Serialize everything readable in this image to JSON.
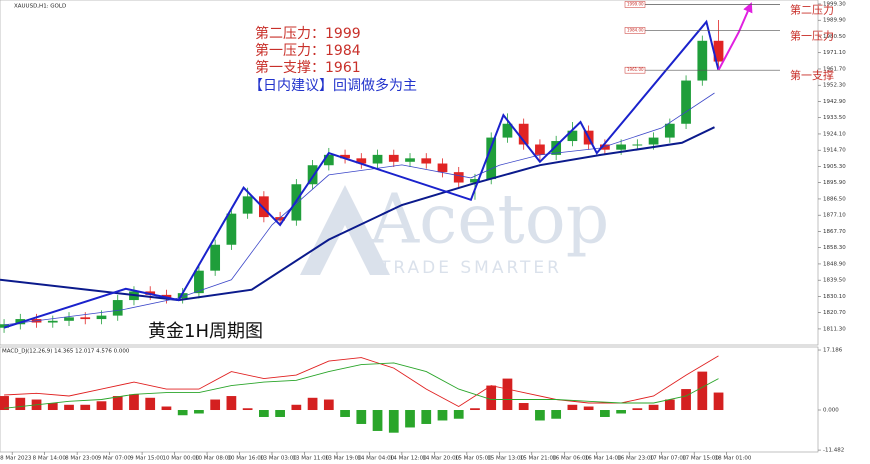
{
  "chart_data": [
    {
      "type": "candlestick",
      "title": "XAUUSD,H1: GOLD",
      "up_color": "#1f9e3a",
      "down_color": "#e02424",
      "x": [
        -2,
        2,
        6,
        10,
        14,
        18,
        22,
        26,
        30,
        34,
        38,
        42,
        46,
        50,
        54,
        58,
        62,
        66,
        70,
        74,
        78,
        82,
        86,
        90,
        94,
        98,
        102,
        106,
        110,
        114,
        118,
        122,
        126,
        130,
        134,
        138,
        142,
        146,
        150,
        154,
        158,
        162,
        166,
        170,
        174
      ],
      "open": [
        1812,
        1814,
        1817,
        1815,
        1816,
        1818,
        1817,
        1819,
        1828,
        1833,
        1831,
        1829,
        1832,
        1845,
        1860,
        1878,
        1888,
        1876,
        1874,
        1895,
        1906,
        1912,
        1910,
        1907,
        1912,
        1908,
        1910,
        1907,
        1902,
        1896,
        1898,
        1922,
        1930,
        1918,
        1912,
        1920,
        1926,
        1918,
        1915,
        1918,
        1918,
        1922,
        1930,
        1955,
        1978
      ],
      "high": [
        1817,
        1820,
        1820,
        1819,
        1821,
        1821,
        1822,
        1831,
        1836,
        1836,
        1834,
        1835,
        1848,
        1863,
        1881,
        1893,
        1891,
        1879,
        1898,
        1909,
        1916,
        1915,
        1913,
        1915,
        1915,
        1913,
        1913,
        1910,
        1905,
        1901,
        1925,
        1936,
        1933,
        1921,
        1923,
        1931,
        1929,
        1921,
        1921,
        1921,
        1925,
        1933,
        1958,
        1981,
        1990
      ],
      "low": [
        1809,
        1811,
        1812,
        1812,
        1813,
        1814,
        1814,
        1816,
        1825,
        1828,
        1826,
        1826,
        1829,
        1842,
        1857,
        1875,
        1873,
        1871,
        1871,
        1892,
        1903,
        1907,
        1904,
        1904,
        1905,
        1905,
        1904,
        1899,
        1893,
        1886,
        1895,
        1919,
        1915,
        1909,
        1909,
        1917,
        1915,
        1912,
        1912,
        1915,
        1915,
        1919,
        1927,
        1952,
        1963
      ],
      "close": [
        1814,
        1817,
        1815,
        1816,
        1818,
        1817,
        1819,
        1828,
        1833,
        1831,
        1829,
        1832,
        1845,
        1860,
        1878,
        1888,
        1876,
        1874,
        1895,
        1906,
        1912,
        1910,
        1907,
        1912,
        1908,
        1910,
        1907,
        1902,
        1896,
        1898,
        1922,
        1930,
        1918,
        1912,
        1920,
        1926,
        1918,
        1915,
        1918,
        1918,
        1922,
        1930,
        1955,
        1978,
        1966
      ],
      "lines": [
        {
          "color": "#0b1a8c",
          "width": 2,
          "x": [
            -3,
            41,
            59,
            78,
            96,
            113,
            130,
            145,
            165,
            173
          ],
          "values": [
            1839.7,
            1828,
            1834,
            1863,
            1883,
            1895,
            1906,
            1912,
            1919,
            1928
          ]
        },
        {
          "color": "#3b46c8",
          "width": 0.8,
          "x": [
            -2,
            27,
            41,
            54,
            64,
            78,
            96,
            113,
            120,
            130,
            145,
            160,
            173
          ],
          "values": [
            1813.6,
            1822.3,
            1829.2,
            1839.7,
            1871.5,
            1900.4,
            1906.2,
            1898.7,
            1906,
            1912,
            1916,
            1927.6,
            1947.8
          ]
        },
        {
          "color": "#1a22cc",
          "width": 2,
          "x": [
            -2,
            28,
            41,
            57,
            66,
            78,
            113,
            121,
            130,
            140,
            144,
            171,
            174
          ],
          "values": [
            1812,
            1834.5,
            1828,
            1893,
            1871.5,
            1913,
            1886,
            1935,
            1908,
            1931,
            1913,
            1989,
            1961
          ]
        },
        {
          "color": "#e020e0",
          "width": 2,
          "arrow": true,
          "x": [
            174,
            179,
            182
          ],
          "values": [
            1961,
            1983,
            1999.3
          ]
        }
      ],
      "levels": [
        {
          "value": 1999,
          "label": "1999.00",
          "name": "第二压力"
        },
        {
          "value": 1984,
          "label": "1984.00",
          "name": "第一压力"
        },
        {
          "value": 1961,
          "label": "1961.00",
          "name": "第一支撑"
        }
      ],
      "annotations": [
        "第二压力：1999",
        "第一压力：1984",
        "第一支撑：1961",
        "【日内建议】回调做多为主",
        "黄金1H周期图"
      ],
      "xlim": [
        -3,
        198.5
      ],
      "ylim": [
        1802,
        2001.6
      ],
      "yticks": [
        {
          "value": 1999.3,
          "label": "1999.30"
        },
        {
          "value": 1989.9,
          "label": "1989.90"
        },
        {
          "value": 1980.5,
          "label": "1980.50"
        },
        {
          "value": 1971.1,
          "label": "1971.10"
        },
        {
          "value": 1961.7,
          "label": "1961.70"
        },
        {
          "value": 1952.3,
          "label": "1952.30"
        },
        {
          "value": 1942.9,
          "label": "1942.90"
        },
        {
          "value": 1933.5,
          "label": "1933.50"
        },
        {
          "value": 1924.1,
          "label": "1924.10"
        },
        {
          "value": 1914.7,
          "label": "1914.70"
        },
        {
          "value": 1905.3,
          "label": "1905.30"
        },
        {
          "value": 1895.9,
          "label": "1895.90"
        },
        {
          "value": 1886.5,
          "label": "1886.50"
        },
        {
          "value": 1877.1,
          "label": "1877.10"
        },
        {
          "value": 1867.7,
          "label": "1867.70"
        },
        {
          "value": 1858.3,
          "label": "1858.30"
        },
        {
          "value": 1848.9,
          "label": "1848.90"
        },
        {
          "value": 1839.5,
          "label": "1839.50"
        },
        {
          "value": 1830.1,
          "label": "1830.10"
        },
        {
          "value": 1820.7,
          "label": "1820.70"
        },
        {
          "value": 1811.3,
          "label": "1811.30"
        }
      ]
    },
    {
      "type": "macd",
      "title": "MACD_DJ(12,26,9) 14.365 12.017 4.576 0.000",
      "up_color": "#d42020",
      "down_color": "#2aa52a",
      "x": [
        -2,
        2,
        6,
        10,
        14,
        18,
        22,
        26,
        30,
        34,
        38,
        42,
        46,
        50,
        54,
        58,
        62,
        66,
        70,
        74,
        78,
        82,
        86,
        90,
        94,
        98,
        102,
        106,
        110,
        114,
        118,
        122,
        126,
        130,
        134,
        138,
        142,
        146,
        150,
        154,
        158,
        162,
        166,
        170,
        174
      ],
      "values": [
        4,
        3.5,
        3,
        2,
        1.5,
        1.5,
        2.5,
        4,
        4.5,
        3.5,
        1,
        -1.5,
        -1,
        3,
        4,
        0.5,
        -2,
        -2,
        1.5,
        3.5,
        3,
        -2,
        -4,
        -6,
        -6.5,
        -5,
        -4,
        -3,
        -2.5,
        0.5,
        7,
        9,
        2,
        -3,
        -2.5,
        1.5,
        1,
        -2,
        -1,
        0.5,
        1.5,
        3,
        6,
        11,
        5
      ],
      "lines": [
        {
          "color": "#e02020",
          "x": [
            -2,
            6,
            14,
            22,
            30,
            38,
            46,
            54,
            62,
            70,
            78,
            86,
            94,
            102,
            110,
            118,
            126,
            134,
            142,
            150,
            158,
            166,
            174
          ],
          "values": [
            4.3,
            4.8,
            4,
            6,
            8,
            6,
            6,
            11,
            9,
            10,
            14,
            15,
            12,
            6,
            1,
            7,
            5,
            3,
            2,
            2,
            4,
            10,
            15.5
          ]
        },
        {
          "color": "#2aa52a",
          "x": [
            -2,
            6,
            14,
            22,
            30,
            38,
            46,
            54,
            62,
            70,
            78,
            86,
            94,
            102,
            110,
            118,
            126,
            134,
            142,
            150,
            158,
            166,
            174
          ],
          "values": [
            0.5,
            1.5,
            2.5,
            3,
            4.5,
            5,
            5,
            7,
            8,
            8.5,
            11,
            13,
            13.5,
            11,
            6,
            3,
            3,
            3,
            2.5,
            2,
            2,
            4,
            9
          ]
        }
      ],
      "xlim": [
        -3,
        198.5
      ],
      "ylim": [
        -12.03,
        18.05
      ],
      "yticks": [
        {
          "value": 17.186,
          "label": "17.186"
        },
        {
          "value": 0,
          "label": "0.000"
        },
        {
          "value": -11.482,
          "label": "-11.482"
        }
      ],
      "xticks": [
        {
          "value": 0,
          "label": "8 Mar 2023"
        },
        {
          "value": 8,
          "label": "8 Mar 14:00"
        },
        {
          "value": 16,
          "label": "8 Mar 23:00"
        },
        {
          "value": 24,
          "label": "9 Mar 07:00"
        },
        {
          "value": 32,
          "label": "9 Mar 15:00"
        },
        {
          "value": 40,
          "label": "10 Mar 00:00"
        },
        {
          "value": 48,
          "label": "10 Mar 08:00"
        },
        {
          "value": 56,
          "label": "10 Mar 16:00"
        },
        {
          "value": 64,
          "label": "13 Mar 03:00"
        },
        {
          "value": 72,
          "label": "13 Mar 11:00"
        },
        {
          "value": 80,
          "label": "13 Mar 19:00"
        },
        {
          "value": 88,
          "label": "14 Mar 04:00"
        },
        {
          "value": 96,
          "label": "14 Mar 12:00"
        },
        {
          "value": 104,
          "label": "14 Mar 20:00"
        },
        {
          "value": 112,
          "label": "15 Mar 05:00"
        },
        {
          "value": 120,
          "label": "15 Mar 13:00"
        },
        {
          "value": 128,
          "label": "15 Mar 21:00"
        },
        {
          "value": 136,
          "label": "16 Mar 06:00"
        },
        {
          "value": 144,
          "label": "16 Mar 14:00"
        },
        {
          "value": 152,
          "label": "16 Mar 23:00"
        },
        {
          "value": 160,
          "label": "17 Mar 07:00"
        },
        {
          "value": 168,
          "label": "17 Mar 15:00"
        },
        {
          "value": 176,
          "label": "18 Mar 01:00"
        }
      ]
    }
  ],
  "watermark": {
    "brand": "Acetop",
    "slogan": "TRADE SMARTER"
  }
}
